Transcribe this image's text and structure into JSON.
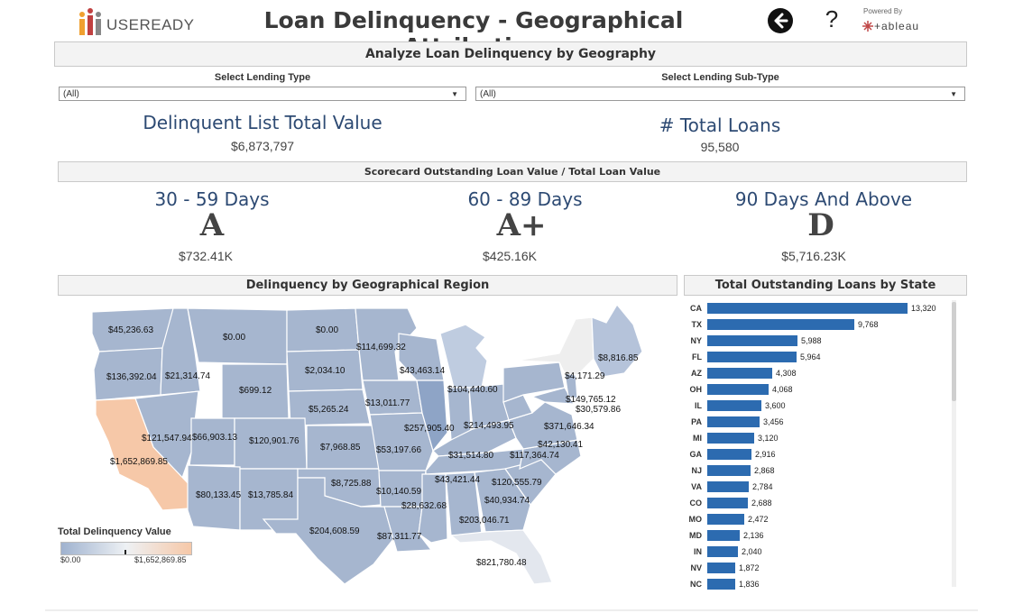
{
  "header": {
    "logo_text": "USEREADY",
    "title": "Loan Delinquency - Geographical Attribution",
    "help_label": "?",
    "powered_by": "Powered By",
    "tableau_text": "+ableau"
  },
  "analyze_title": "Analyze Loan Delinquency by Geography",
  "filters": {
    "lending_type": {
      "label": "Select Lending Type",
      "value": "(All)"
    },
    "lending_subtype": {
      "label": "Select Lending Sub-Type",
      "value": "(All)"
    }
  },
  "kpis": {
    "delinquent_title": "Delinquent List Total Value",
    "delinquent_value": "$6,873,797",
    "loans_title": "# Total Loans",
    "loans_value": "95,580"
  },
  "scorecard": {
    "title": "Scorecard Outstanding Loan Value / Total Loan Value",
    "buckets": [
      {
        "label": "30 - 59 Days",
        "grade": "A",
        "value": "$732.41K"
      },
      {
        "label": "60 - 89 Days",
        "grade": "A+",
        "value": "$425.16K"
      },
      {
        "label": "90 Days And Above",
        "grade": "D",
        "value": "$5,716.23K"
      }
    ]
  },
  "map": {
    "title": "Delinquency by Geographical Region",
    "colors": {
      "low": "#9fb2cf",
      "mid": "#eef1f4",
      "high": "#f6c8a8",
      "border": "#ffffff"
    },
    "labels": [
      "$45,236.63",
      "$0.00",
      "$0.00",
      "$114,699.32",
      "$8,816.85",
      "$136,392.04",
      "$21,314.74",
      "$2,034.10",
      "$43,463.14",
      "$4,171.29",
      "$699.12",
      "$104,440.60",
      "$149,765.12",
      "$13,011.77",
      "$30,579.86",
      "$5,265.24",
      "$257,905.40",
      "$214,493.95",
      "$371,646.34",
      "$121,547.94",
      "$66,903.13",
      "$120,901.76",
      "$42,130.41",
      "$7,968.85",
      "$53,197.66",
      "$31,514.80",
      "$117,364.74",
      "$1,652,869.85",
      "$8,725.88",
      "$43,421.44",
      "$120,555.79",
      "$80,133.45",
      "$13,785.84",
      "$10,140.59",
      "$40,934.74",
      "$28,632.68",
      "$203,046.71",
      "$204,608.59",
      "$87,311.77",
      "$821,780.48"
    ],
    "legend_title": "Total Delinquency Value",
    "legend_min": "$0.00",
    "legend_max": "$1,652,869.85"
  },
  "state_chart": {
    "title": "Total Outstanding Loans by State",
    "bar_color": "#2c6bb0",
    "max": 13320,
    "states": [
      {
        "abbr": "CA",
        "value": 13320,
        "label": "13,320"
      },
      {
        "abbr": "TX",
        "value": 9768,
        "label": "9,768"
      },
      {
        "abbr": "NY",
        "value": 5988,
        "label": "5,988"
      },
      {
        "abbr": "FL",
        "value": 5964,
        "label": "5,964"
      },
      {
        "abbr": "AZ",
        "value": 4308,
        "label": "4,308"
      },
      {
        "abbr": "OH",
        "value": 4068,
        "label": "4,068"
      },
      {
        "abbr": "IL",
        "value": 3600,
        "label": "3,600"
      },
      {
        "abbr": "PA",
        "value": 3456,
        "label": "3,456"
      },
      {
        "abbr": "MI",
        "value": 3120,
        "label": "3,120"
      },
      {
        "abbr": "GA",
        "value": 2916,
        "label": "2,916"
      },
      {
        "abbr": "NJ",
        "value": 2868,
        "label": "2,868"
      },
      {
        "abbr": "VA",
        "value": 2784,
        "label": "2,784"
      },
      {
        "abbr": "CO",
        "value": 2688,
        "label": "2,688"
      },
      {
        "abbr": "MO",
        "value": 2472,
        "label": "2,472"
      },
      {
        "abbr": "MD",
        "value": 2136,
        "label": "2,136"
      },
      {
        "abbr": "IN",
        "value": 2040,
        "label": "2,040"
      },
      {
        "abbr": "NV",
        "value": 1872,
        "label": "1,872"
      },
      {
        "abbr": "NC",
        "value": 1836,
        "label": "1,836"
      }
    ]
  }
}
